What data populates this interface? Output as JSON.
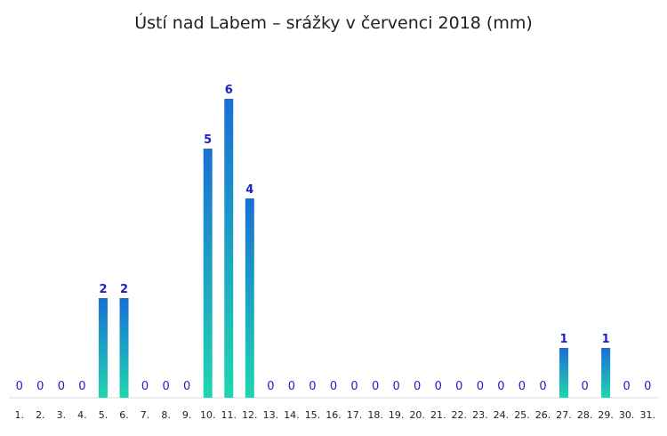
{
  "chart_data": {
    "type": "bar",
    "title": "Ústí nad Labem – srážky v červenci 2018 (mm)",
    "xlabel": "",
    "ylabel": "",
    "ylim": [
      0,
      6
    ],
    "grid": false,
    "legend": "none",
    "categories": [
      "1.",
      "2.",
      "3.",
      "4.",
      "5.",
      "6.",
      "7.",
      "8.",
      "9.",
      "10.",
      "11.",
      "12.",
      "13.",
      "14.",
      "15.",
      "16.",
      "17.",
      "18.",
      "19.",
      "20.",
      "21.",
      "22.",
      "23.",
      "24.",
      "25.",
      "26.",
      "27.",
      "28.",
      "29.",
      "30.",
      "31."
    ],
    "values": [
      0,
      0,
      0,
      0,
      2,
      2,
      0,
      0,
      0,
      5,
      6,
      4,
      0,
      0,
      0,
      0,
      0,
      0,
      0,
      0,
      0,
      0,
      0,
      0,
      0,
      0,
      1,
      0,
      1,
      0,
      0
    ],
    "colors": {
      "bar_top": "#1a6fd6",
      "bar_bottom": "#1fd6b0",
      "value_label": "#1e1ec8",
      "axis": "#d9d9d9",
      "text": "#1f1f1f"
    }
  }
}
